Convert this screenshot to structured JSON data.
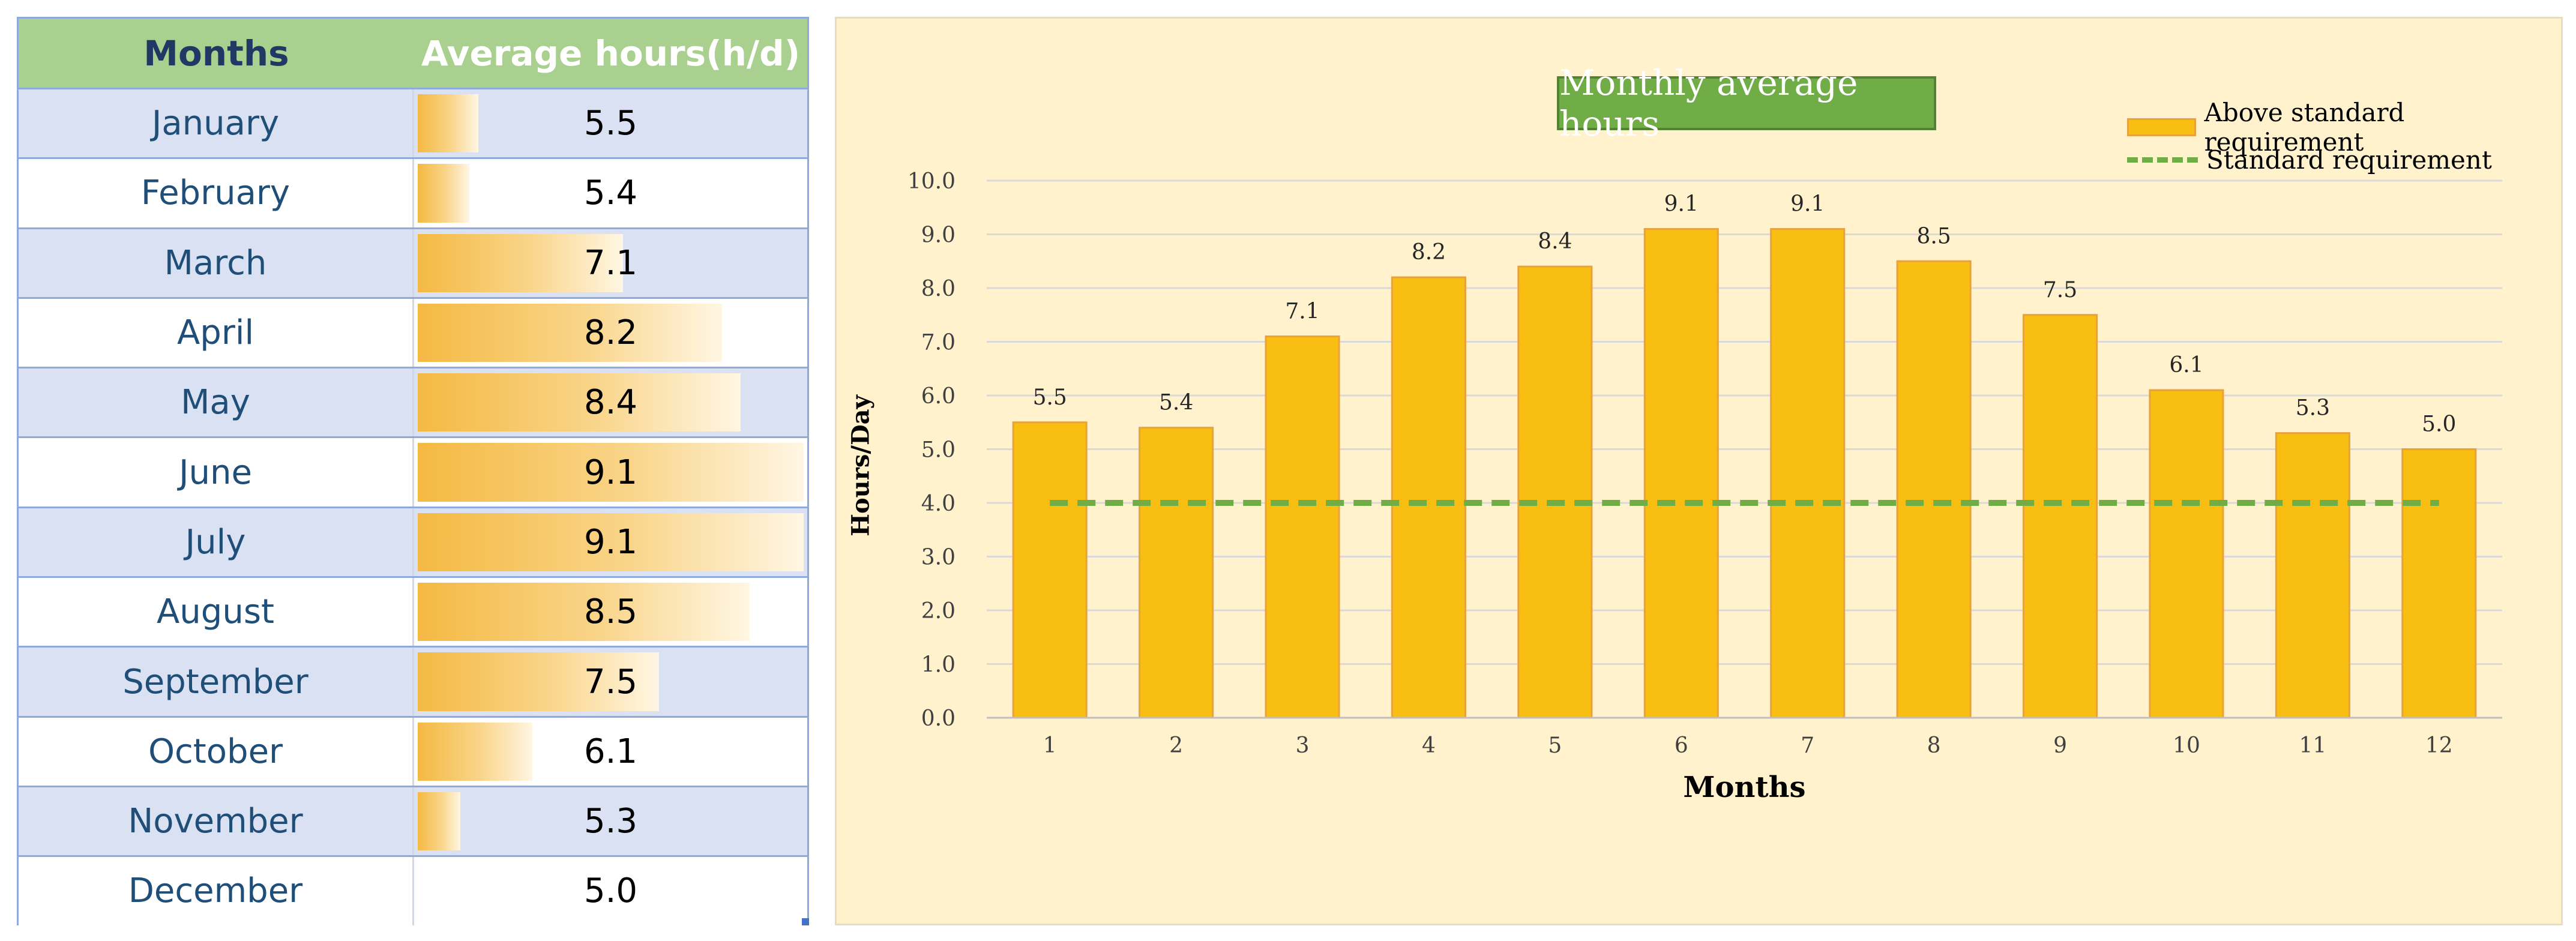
{
  "table": {
    "header": {
      "months": "Months",
      "hours": "Average hours(h/d)"
    },
    "rows": [
      {
        "month": "January",
        "value": "5.5",
        "fill": 5.5
      },
      {
        "month": "February",
        "value": "5.4",
        "fill": 5.4
      },
      {
        "month": "March",
        "value": "7.1",
        "fill": 7.1
      },
      {
        "month": "April",
        "value": "8.2",
        "fill": 8.2
      },
      {
        "month": "May",
        "value": "8.4",
        "fill": 8.4
      },
      {
        "month": "June",
        "value": "9.1",
        "fill": 9.1
      },
      {
        "month": "July",
        "value": "9.1",
        "fill": 9.1
      },
      {
        "month": "August",
        "value": "8.5",
        "fill": 8.5
      },
      {
        "month": "September",
        "value": "7.5",
        "fill": 7.5
      },
      {
        "month": "October",
        "value": "6.1",
        "fill": 6.1
      },
      {
        "month": "November",
        "value": "5.3",
        "fill": 5.3
      },
      {
        "month": "December",
        "value": "5.0",
        "fill": 5.0
      }
    ]
  },
  "chart_data": {
    "type": "bar",
    "title": "Monthly average hours",
    "xlabel": "Months",
    "ylabel": "Hours/Day",
    "categories": [
      "1",
      "2",
      "3",
      "4",
      "5",
      "6",
      "7",
      "8",
      "9",
      "10",
      "11",
      "12"
    ],
    "series": [
      {
        "name": "Above standard requirement",
        "type": "bar",
        "values": [
          5.5,
          5.4,
          7.1,
          8.2,
          8.4,
          9.1,
          9.1,
          8.5,
          7.5,
          6.1,
          5.3,
          5.0
        ],
        "labels": [
          "5.5",
          "5.4",
          "7.1",
          "8.2",
          "8.4",
          "9.1",
          "9.1",
          "8.5",
          "7.5",
          "6.1",
          "5.3",
          "5.0"
        ]
      },
      {
        "name": "Standard requirement",
        "type": "line-dashed",
        "values": [
          4.0,
          4.0,
          4.0,
          4.0,
          4.0,
          4.0,
          4.0,
          4.0,
          4.0,
          4.0,
          4.0,
          4.0
        ]
      }
    ],
    "ylim": [
      0,
      10
    ],
    "yticks": [
      "0.0",
      "1.0",
      "2.0",
      "3.0",
      "4.0",
      "5.0",
      "6.0",
      "7.0",
      "8.0",
      "9.0",
      "10.0"
    ],
    "grid": true,
    "legend": "top-right"
  },
  "colors": {
    "bar_fill": "#F9BE12",
    "bar_edge": "#E9A23B",
    "standard_line": "#70AD47",
    "chart_bg": "#FFF2CC",
    "title_bg": "#70AD47"
  }
}
